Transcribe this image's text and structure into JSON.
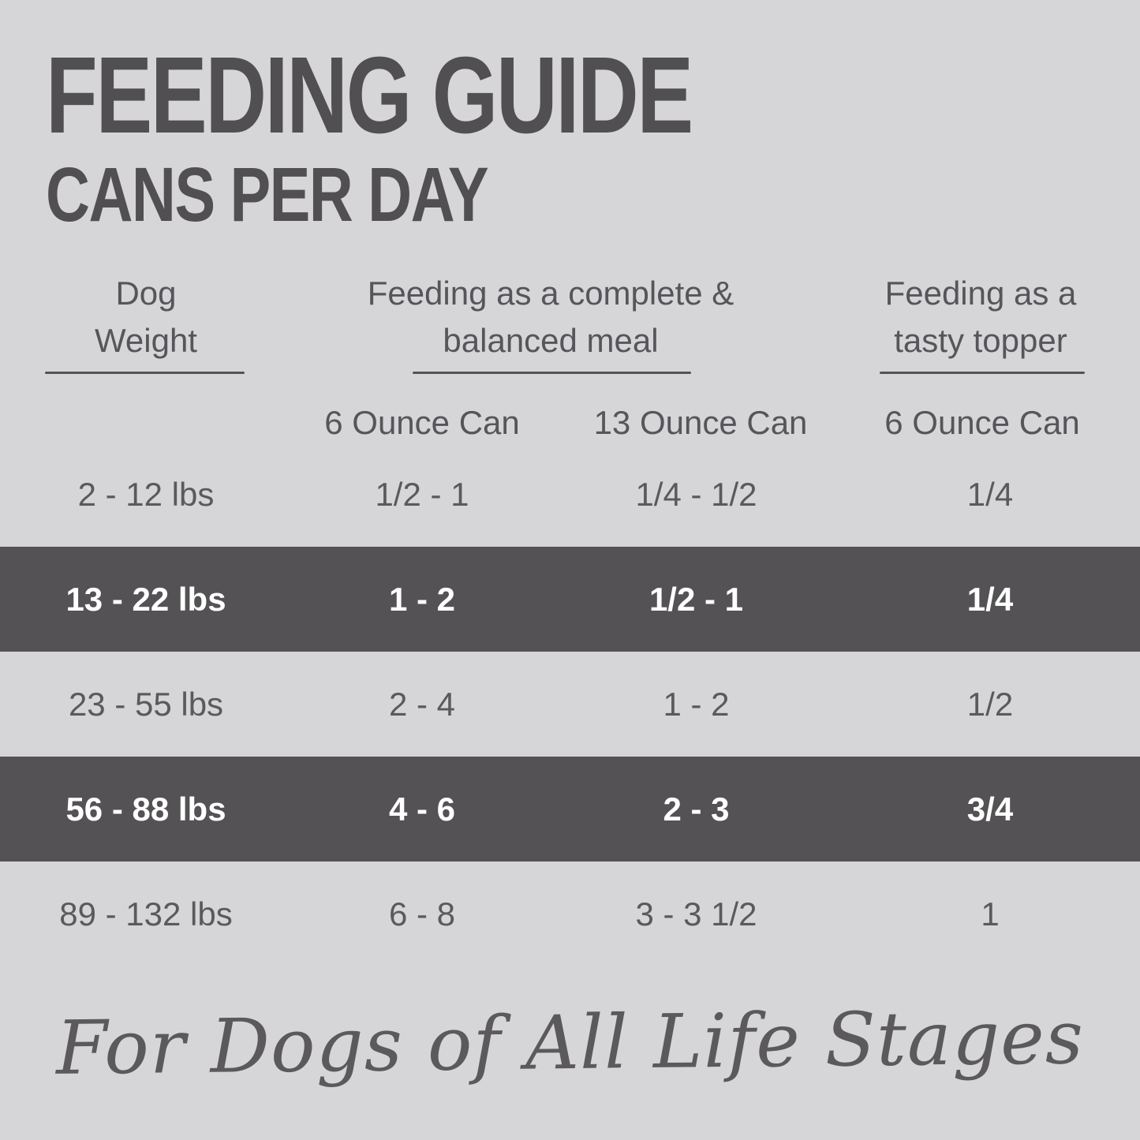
{
  "title": "FEEDING GUIDE",
  "subtitle": "CANS PER DAY",
  "table": {
    "groups": {
      "dog_weight": {
        "line1": "Dog",
        "line2": "Weight"
      },
      "complete_meal": {
        "line1": "Feeding as a complete &",
        "line2": "balanced meal"
      },
      "tasty_topper": {
        "line1": "Feeding as a",
        "line2": "tasty topper"
      }
    },
    "sub_headers": {
      "meal_6oz": "6 Ounce Can",
      "meal_13oz": "13 Ounce Can",
      "topper_6oz": "6 Ounce Can"
    },
    "rows": [
      {
        "weight": "2 - 12 lbs",
        "meal_6oz": "1/2 - 1",
        "meal_13oz": "1/4 - 1/2",
        "topper_6oz": "1/4",
        "highlighted": false
      },
      {
        "weight": "13 - 22 lbs",
        "meal_6oz": "1 - 2",
        "meal_13oz": "1/2 - 1",
        "topper_6oz": "1/4",
        "highlighted": true
      },
      {
        "weight": "23 - 55 lbs",
        "meal_6oz": "2 - 4",
        "meal_13oz": "1 - 2",
        "topper_6oz": "1/2",
        "highlighted": false
      },
      {
        "weight": "56 - 88 lbs",
        "meal_6oz": "4 - 6",
        "meal_13oz": "2 - 3",
        "topper_6oz": "3/4",
        "highlighted": true
      },
      {
        "weight": "89 - 132 lbs",
        "meal_6oz": "6 - 8",
        "meal_13oz": "3 - 3 1/2",
        "topper_6oz": "1",
        "highlighted": false
      }
    ]
  },
  "footer_tagline": "For Dogs of All Life Stages",
  "colors": {
    "background": "#d6d6d8",
    "highlight_band": "#545254",
    "text_dark": "#514f52",
    "text_body": "#595a5c",
    "text_on_band": "#ffffff"
  },
  "chart_data": {
    "type": "table",
    "title": "FEEDING GUIDE — CANS PER DAY",
    "columns": [
      "Dog Weight",
      "Feeding as a complete & balanced meal — 6 Ounce Can",
      "Feeding as a complete & balanced meal — 13 Ounce Can",
      "Feeding as a tasty topper — 6 Ounce Can"
    ],
    "rows": [
      [
        "2 - 12 lbs",
        "1/2 - 1",
        "1/4 - 1/2",
        "1/4"
      ],
      [
        "13 - 22 lbs",
        "1 - 2",
        "1/2 - 1",
        "1/4"
      ],
      [
        "23 - 55 lbs",
        "2 - 4",
        "1 - 2",
        "1/2"
      ],
      [
        "56 - 88 lbs",
        "4 - 6",
        "2 - 3",
        "3/4"
      ],
      [
        "89 - 132 lbs",
        "6 - 8",
        "3 - 3 1/2",
        "1"
      ]
    ],
    "highlighted_row_indices": [
      1,
      3
    ],
    "footnote": "For Dogs of All Life Stages"
  }
}
